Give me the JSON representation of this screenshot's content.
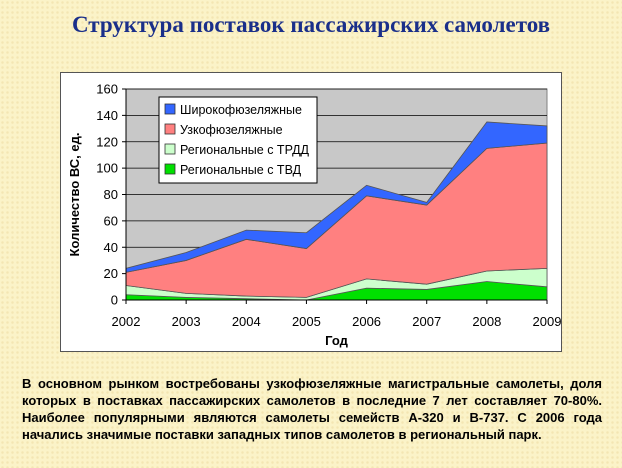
{
  "page": {
    "title": "Структура поставок пассажирских самолетов",
    "caption": "В основном рынком востребованы узкофюзеляжные магистральные самолеты, доля которых в поставках пассажирских самолетов в последние 7 лет составляет 70-80%. Наиболее популярными являются самолеты семейств А-320 и В-737. С 2006 года начались значимые поставки западных типов самолетов в региональный парк."
  },
  "chart_data": {
    "type": "area",
    "stacked": true,
    "title": "",
    "xlabel": "Год",
    "ylabel": "Количество ВС, ед.",
    "categories": [
      "2002",
      "2003",
      "2004",
      "2005",
      "2006",
      "2007",
      "2008",
      "2009"
    ],
    "ylim": [
      0,
      160
    ],
    "yticks": [
      0,
      20,
      40,
      60,
      80,
      100,
      120,
      140,
      160
    ],
    "grid": true,
    "legend_position": "top-left",
    "series": [
      {
        "name": "Региональные с ТВД",
        "color": "#00e000",
        "values": [
          4,
          2,
          1,
          0,
          9,
          8,
          14,
          10
        ]
      },
      {
        "name": "Региональные с ТРДД",
        "color": "#ccffcc",
        "values": [
          7,
          3,
          2,
          2,
          7,
          4,
          8,
          14
        ]
      },
      {
        "name": "Узкофюзеляжные",
        "color": "#ff8080",
        "values": [
          10,
          25,
          43,
          37,
          63,
          60,
          93,
          95
        ]
      },
      {
        "name": "Широкофюзеляжные",
        "color": "#3366ff",
        "values": [
          3,
          6,
          7,
          12,
          8,
          2,
          20,
          13
        ]
      }
    ]
  }
}
